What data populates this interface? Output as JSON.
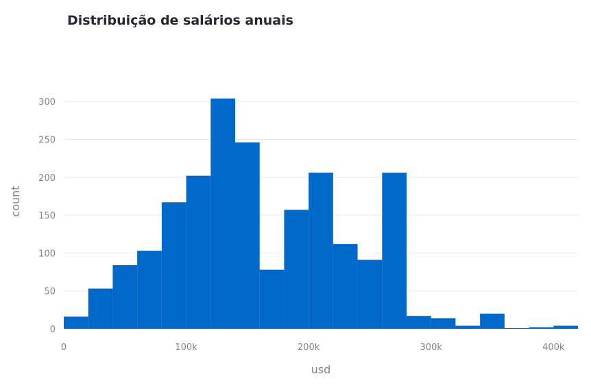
{
  "chart_data": {
    "type": "bar",
    "title": "Distribuição de salários anuais",
    "xlabel": "usd",
    "ylabel": "count",
    "bin_edges": [
      0,
      20000,
      40000,
      60000,
      80000,
      100000,
      120000,
      140000,
      160000,
      180000,
      200000,
      220000,
      240000,
      260000,
      280000,
      300000,
      320000,
      340000,
      360000,
      380000,
      400000,
      420000
    ],
    "values": [
      16,
      53,
      84,
      103,
      167,
      202,
      304,
      246,
      78,
      157,
      206,
      112,
      91,
      206,
      17,
      14,
      4,
      20,
      1,
      2,
      4
    ],
    "xlim": [
      0,
      420000
    ],
    "ylim": [
      0,
      330
    ],
    "xticks": [
      {
        "value": 0,
        "label": "0"
      },
      {
        "value": 100000,
        "label": "100k"
      },
      {
        "value": 200000,
        "label": "200k"
      },
      {
        "value": 300000,
        "label": "300k"
      },
      {
        "value": 400000,
        "label": "400k"
      }
    ],
    "yticks": [
      {
        "value": 0,
        "label": "0"
      },
      {
        "value": 50,
        "label": "50"
      },
      {
        "value": 100,
        "label": "100"
      },
      {
        "value": 150,
        "label": "150"
      },
      {
        "value": 200,
        "label": "200"
      },
      {
        "value": 250,
        "label": "250"
      },
      {
        "value": 300,
        "label": "300"
      }
    ],
    "grid": true,
    "bar_color": "#0068c9"
  }
}
